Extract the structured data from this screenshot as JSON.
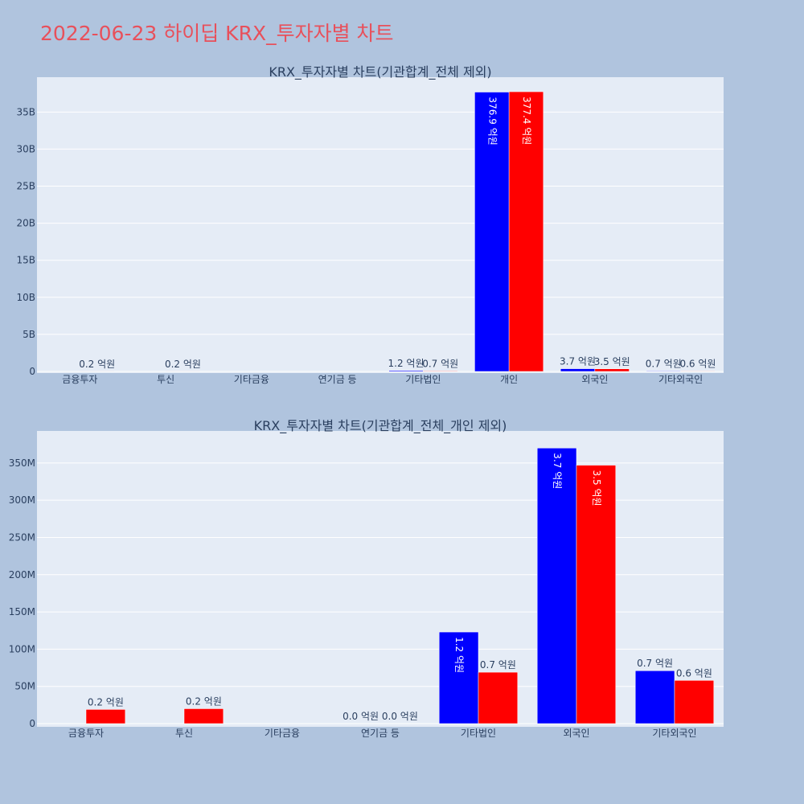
{
  "page": {
    "title": "2022-06-23 하이딥 KRX_투자자별 차트"
  },
  "colors": {
    "buy": "#0000ff",
    "sell": "#ff0000",
    "plot_bg": "#e5ecf6",
    "page_bg": "#b0c4de",
    "title": "#e8505b",
    "text": "#2a3f5f"
  },
  "chart_data": [
    {
      "type": "bar",
      "title": "KRX_투자자별 차트(기관합계_전체 제외)",
      "categories": [
        "금융투자",
        "투신",
        "기타금융",
        "연기금 등",
        "기타법인",
        "개인",
        "외국인",
        "기타외국인"
      ],
      "series": [
        {
          "values": [
            0,
            0,
            0,
            0,
            120000000,
            37690000000,
            370000000,
            70000000
          ],
          "labels": [
            "",
            "",
            "",
            "",
            "1.2 억원",
            "376.9 억원",
            "3.7 억원",
            "0.7 억원"
          ]
        },
        {
          "values": [
            20000000,
            20000000,
            0,
            0,
            70000000,
            37740000000,
            350000000,
            60000000
          ],
          "labels": [
            "0.2 억원",
            "0.2 억원",
            "",
            "",
            "0.7 억원",
            "377.4 억원",
            "3.5 억원",
            "0.6 억원"
          ]
        }
      ],
      "ylim": [
        0,
        39700000000
      ],
      "yticks": [
        0,
        5000000000,
        10000000000,
        15000000000,
        20000000000,
        25000000000,
        30000000000,
        35000000000
      ],
      "ytick_labels": [
        "0",
        "5B",
        "10B",
        "15B",
        "20B",
        "25B",
        "30B",
        "35B"
      ],
      "grid": true
    },
    {
      "type": "bar",
      "title": "KRX_투자자별 차트(기관합계_전체_개인 제외)",
      "categories": [
        "금융투자",
        "투신",
        "기타금융",
        "연기금 등",
        "기타법인",
        "외국인",
        "기타외국인"
      ],
      "series": [
        {
          "values": [
            0,
            0,
            0,
            0,
            123000000,
            370000000,
            71000000
          ],
          "labels": [
            "",
            "",
            "",
            "0.0 억원",
            "1.2 억원",
            "3.7 억원",
            "0.7 억원"
          ]
        },
        {
          "values": [
            19000000,
            20000000,
            0,
            0,
            69000000,
            347000000,
            58000000
          ],
          "labels": [
            "0.2 억원",
            "0.2 억원",
            "",
            "0.0 억원",
            "0.7 억원",
            "3.5 억원",
            "0.6 억원"
          ]
        }
      ],
      "ylim": [
        0,
        393000000
      ],
      "yticks": [
        0,
        50000000,
        100000000,
        150000000,
        200000000,
        250000000,
        300000000,
        350000000
      ],
      "ytick_labels": [
        "0",
        "50M",
        "100M",
        "150M",
        "200M",
        "250M",
        "300M",
        "350M"
      ],
      "grid": true
    }
  ]
}
